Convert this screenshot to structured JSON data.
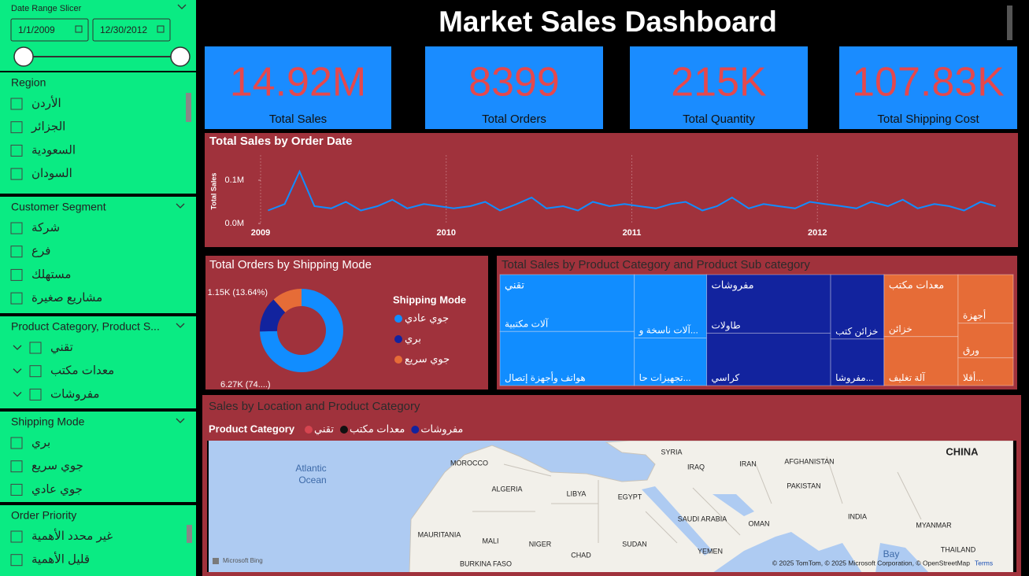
{
  "title": "Market Sales Dashboard",
  "slicers": {
    "date": {
      "title": "Date Range Slicer",
      "start": "1/1/2009",
      "end": "12/30/2012"
    },
    "region": {
      "title": "Region",
      "items": [
        "الأردن",
        "الجزائر",
        "السعودية",
        "السودان"
      ]
    },
    "segment": {
      "title": "Customer Segment",
      "items": [
        "شركة",
        "فرع",
        "مستهلك",
        "مشاريع صغيرة"
      ]
    },
    "category": {
      "title": "Product Category, Product S...",
      "items": [
        "تقني",
        "معدات مكتب",
        "مفروشات"
      ]
    },
    "shipping": {
      "title": "Shipping Mode",
      "items": [
        "بري",
        "جوي سريع",
        "جوي عادي"
      ]
    },
    "priority": {
      "title": "Order Priority",
      "items": [
        "غير محدد الأهمية",
        "قليل الأهمية"
      ]
    }
  },
  "kpis": [
    {
      "value": "14.92M",
      "label": "Total Sales"
    },
    {
      "value": "8399",
      "label": "Total Orders"
    },
    {
      "value": "215K",
      "label": "Total Quantity"
    },
    {
      "value": "107.83K",
      "label": "Total Shipping Cost"
    }
  ],
  "chart_data": [
    {
      "type": "line",
      "title": "Total Sales by Order Date",
      "y_label": "Total Sales",
      "color": "#118dff",
      "x": [
        2009.04,
        2009.13,
        2009.21,
        2009.29,
        2009.38,
        2009.46,
        2009.54,
        2009.63,
        2009.71,
        2009.79,
        2009.88,
        2009.96,
        2010.04,
        2010.13,
        2010.21,
        2010.29,
        2010.38,
        2010.46,
        2010.54,
        2010.63,
        2010.71,
        2010.79,
        2010.88,
        2010.96,
        2011.04,
        2011.13,
        2011.21,
        2011.29,
        2011.38,
        2011.46,
        2011.54,
        2011.63,
        2011.71,
        2011.79,
        2011.88,
        2011.96,
        2012.04,
        2012.13,
        2012.21,
        2012.29,
        2012.38,
        2012.46,
        2012.54,
        2012.63,
        2012.71,
        2012.79,
        2012.88,
        2012.96
      ],
      "values": [
        0.03,
        0.045,
        0.12,
        0.04,
        0.035,
        0.05,
        0.03,
        0.04,
        0.055,
        0.035,
        0.045,
        0.04,
        0.035,
        0.04,
        0.05,
        0.03,
        0.045,
        0.06,
        0.035,
        0.04,
        0.03,
        0.05,
        0.04,
        0.045,
        0.04,
        0.035,
        0.045,
        0.05,
        0.03,
        0.04,
        0.06,
        0.035,
        0.045,
        0.04,
        0.035,
        0.05,
        0.045,
        0.04,
        0.035,
        0.05,
        0.04,
        0.055,
        0.035,
        0.045,
        0.04,
        0.03,
        0.05,
        0.04
      ],
      "xlim": [
        2009,
        2013
      ],
      "xticks": [
        2009,
        2010,
        2011,
        2012
      ],
      "xgrid": true,
      "ylim": [
        0,
        0.15
      ],
      "yticks": [
        {
          "value": 0,
          "label": "0.0M"
        },
        {
          "value": 0.1,
          "label": "0.1M"
        }
      ]
    },
    {
      "type": "donut",
      "title": "Total Orders by Shipping Mode",
      "legend_title": "Shipping Mode",
      "categories": [
        "جوي عادي",
        "بري",
        "جوي سريع"
      ],
      "values": [
        6270,
        1150,
        980
      ],
      "value_labels": [
        "6.27K (74....)",
        "1.15K (13.64%)",
        null
      ],
      "colors": [
        "#118dff",
        "#12239e",
        "#e66c37"
      ]
    },
    {
      "type": "treemap",
      "title": "Total Sales by Product Category and Product Sub category",
      "categories": [
        {
          "name": "تقني",
          "color": "#118dff",
          "children": [
            {
              "name": "آلات مكتبية",
              "value": 2.0
            },
            {
              "name": "هواتف وأجهزة إتصال",
              "value": 1.9
            },
            {
              "name": "آلات ناسخة و...",
              "value": 1.2
            },
            {
              "name": "تجهيزات حا...",
              "value": 0.9
            }
          ]
        },
        {
          "name": "مفروشات",
          "color": "#12239e",
          "children": [
            {
              "name": "طاولات",
              "value": 1.9
            },
            {
              "name": "كراسي",
              "value": 1.7
            },
            {
              "name": "خزائن كتب",
              "value": 0.9
            },
            {
              "name": "مفروشا...",
              "value": 0.65
            }
          ]
        },
        {
          "name": "معدات مكتب",
          "color": "#e66c37",
          "children": [
            {
              "name": "خزائن",
              "value": 1.2
            },
            {
              "name": "آلة تغليف",
              "value": 0.95
            },
            {
              "name": "أجهزة",
              "value": 0.7
            },
            {
              "name": "ورق",
              "value": 0.5
            },
            {
              "name": "أقلا...",
              "value": 0.4
            }
          ]
        }
      ]
    },
    {
      "type": "map",
      "title": "Sales by Location and Product Category",
      "legend_title": "Product Category",
      "series": [
        {
          "name": "تقني",
          "color": "#d64550"
        },
        {
          "name": "معدات مكتب",
          "color": "#111111"
        },
        {
          "name": "مفروشات",
          "color": "#12239e"
        }
      ],
      "labels": [
        "Atlantic",
        "Ocean",
        "MOROCCO",
        "ALGERIA",
        "LIBYA",
        "EGYPT",
        "SYRIA",
        "IRAQ",
        "IRAN",
        "AFGHANISTAN",
        "PAKISTAN",
        "CHINA",
        "SAUDI ARABIA",
        "OMAN",
        "INDIA",
        "MYANMAR",
        "THAILAND",
        "MAURITANIA",
        "MALI",
        "NIGER",
        "CHAD",
        "SUDAN",
        "YEMEN",
        "BURKINA FASO",
        "Bay"
      ],
      "provider": "Microsoft Bing",
      "attribution": "© 2025 TomTom, © 2025 Microsoft Corporation, © OpenStreetMap",
      "terms": "Terms"
    }
  ]
}
